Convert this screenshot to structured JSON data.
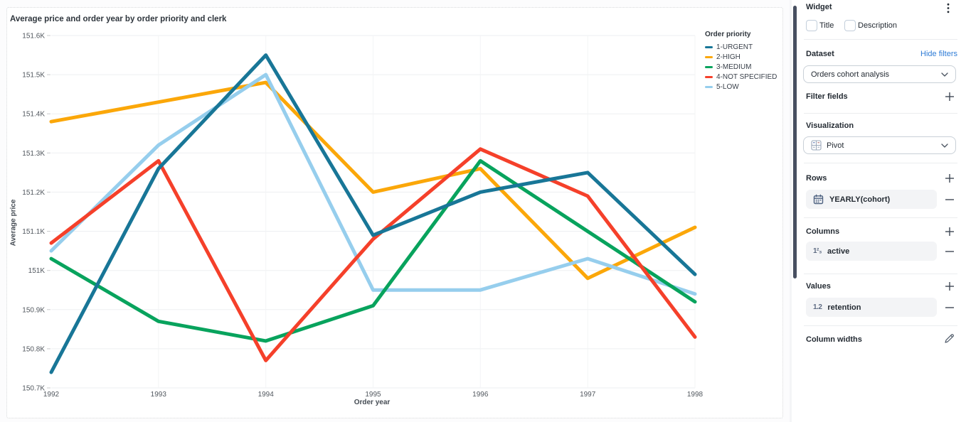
{
  "chart": {
    "title": "Average price and order year by order priority and clerk",
    "ylabel": "Average price",
    "xlabel": "Order year",
    "legend_title": "Order priority"
  },
  "chart_data": {
    "type": "line",
    "x": [
      1992,
      1993,
      1994,
      1995,
      1996,
      1997,
      1998
    ],
    "x_label": "Order year",
    "y_label": "Average price",
    "ylim": [
      150.7,
      151.6
    ],
    "y_ticks": [
      {
        "v": 151.6,
        "label": "151.6K"
      },
      {
        "v": 151.5,
        "label": "151.5K"
      },
      {
        "v": 151.4,
        "label": "151.4K"
      },
      {
        "v": 151.3,
        "label": "151.3K"
      },
      {
        "v": 151.2,
        "label": "151.2K"
      },
      {
        "v": 151.1,
        "label": "151.1K"
      },
      {
        "v": 151.0,
        "label": "151K"
      },
      {
        "v": 150.9,
        "label": "150.9K"
      },
      {
        "v": 150.8,
        "label": "150.8K"
      },
      {
        "v": 150.7,
        "label": "150.7K"
      }
    ],
    "legend_position": "top-right",
    "grid": true,
    "series": [
      {
        "name": "1-URGENT",
        "color": "#187697",
        "values": [
          150.74,
          151.26,
          151.55,
          151.09,
          151.2,
          151.25,
          150.99
        ]
      },
      {
        "name": "2-HIGH",
        "color": "#FBA709",
        "values": [
          151.38,
          151.43,
          151.48,
          151.2,
          151.26,
          150.98,
          151.11
        ]
      },
      {
        "name": "3-MEDIUM",
        "color": "#08A35D",
        "values": [
          151.03,
          150.87,
          150.82,
          150.91,
          151.28,
          151.1,
          150.92
        ]
      },
      {
        "name": "4-NOT SPECIFIED",
        "color": "#F5402A",
        "values": [
          151.07,
          151.28,
          150.77,
          151.08,
          151.31,
          151.19,
          150.83
        ]
      },
      {
        "name": "5-LOW",
        "color": "#96CEED",
        "values": [
          151.05,
          151.32,
          151.5,
          150.95,
          150.95,
          151.03,
          150.94
        ]
      }
    ],
    "draw_order": [
      1,
      4,
      2,
      3,
      0
    ]
  },
  "panel": {
    "widget_label": "Widget",
    "title_checkbox_label": "Title",
    "description_checkbox_label": "Description",
    "dataset_label": "Dataset",
    "hide_filters_link": "Hide filters",
    "dataset_value": "Orders cohort analysis",
    "filter_fields_label": "Filter fields",
    "visualization_label": "Visualization",
    "visualization_value": "Pivot",
    "rows_label": "Rows",
    "rows_item_label": "YEARLY(cohort)",
    "rows_item_icon": "calendar-icon",
    "columns_label": "Columns",
    "columns_item_label": "active",
    "columns_item_icon": "integer-123-icon",
    "columns_item_icon_glyph": "1²₃",
    "values_label": "Values",
    "values_item_label": "retention",
    "values_item_icon": "decimal-12-icon",
    "values_item_icon_glyph": "1.2",
    "column_widths_label": "Column widths"
  },
  "colors": {
    "link_blue": "#2e7cd6",
    "panel_text": "#242b33",
    "scrollbar": "#474f60",
    "pill_bg": "#f3f4f6",
    "grid_h": "#edeff1",
    "grid_v": "#f3f4f6"
  }
}
